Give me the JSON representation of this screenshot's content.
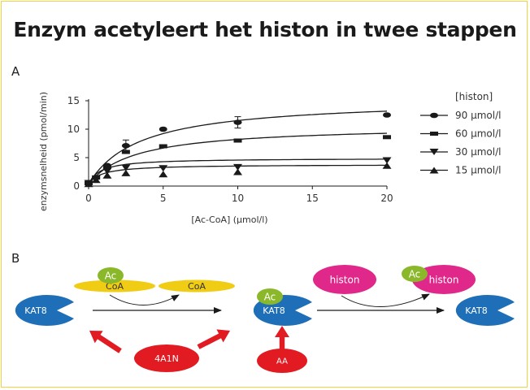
{
  "title": "Enzym acetyleert het histon in twee stappen",
  "panel_a_label": "A",
  "panel_b_label": "B",
  "colors": {
    "frame": "#f2d33a",
    "enzyme": "#1f6fb8",
    "acetyl": "#8bb82a",
    "coa": "#f0cc14",
    "histone": "#e0278a",
    "inhibitor": "#e21b23",
    "curve": "#1a1a1a"
  },
  "chart_data": {
    "type": "scatter",
    "ylabel": "enzymsnelheid (pmol/min)",
    "xlabel": "[Ac-CoA] (μmol/l)",
    "xlim": [
      0,
      20
    ],
    "ylim": [
      0,
      15
    ],
    "xticks": [
      0,
      5,
      10,
      15,
      20
    ],
    "yticks": [
      0,
      5,
      10,
      15
    ],
    "legend_title": "[histon]",
    "legend_position": "right",
    "grid": false,
    "series": [
      {
        "name": "90 μmol/l",
        "marker": "circle",
        "vmax": 15.0,
        "km": 3.5,
        "points": [
          {
            "x": 0,
            "y": 0.5
          },
          {
            "x": 0.5,
            "y": 1.5
          },
          {
            "x": 1.25,
            "y": 3.6
          },
          {
            "x": 2.5,
            "y": 7.1
          },
          {
            "x": 5,
            "y": 10.0
          },
          {
            "x": 10,
            "y": 11.2
          },
          {
            "x": 20,
            "y": 12.5
          }
        ]
      },
      {
        "name": "60 μmol/l",
        "marker": "square",
        "vmax": 10.3,
        "km": 3.2,
        "points": [
          {
            "x": 0,
            "y": 0.5
          },
          {
            "x": 0.5,
            "y": 1.5
          },
          {
            "x": 1.25,
            "y": 3.4
          },
          {
            "x": 2.5,
            "y": 6.0
          },
          {
            "x": 5,
            "y": 7.0
          },
          {
            "x": 10,
            "y": 8.0
          },
          {
            "x": 20,
            "y": 8.6
          }
        ]
      },
      {
        "name": "30 μmol/l",
        "marker": "triangle-down",
        "vmax": 4.5,
        "km": 0.8,
        "points": [
          {
            "x": 0,
            "y": 0.5
          },
          {
            "x": 0.5,
            "y": 1.3
          },
          {
            "x": 1.25,
            "y": 2.6
          },
          {
            "x": 2.5,
            "y": 3.2
          },
          {
            "x": 5,
            "y": 3.1
          },
          {
            "x": 10,
            "y": 3.3
          },
          {
            "x": 20,
            "y": 4.5
          }
        ]
      },
      {
        "name": "15 μmol/l",
        "marker": "triangle-up",
        "vmax": 3.4,
        "km": 0.9,
        "points": [
          {
            "x": 0,
            "y": 0.4
          },
          {
            "x": 0.5,
            "y": 1.1
          },
          {
            "x": 1.25,
            "y": 1.9
          },
          {
            "x": 2.5,
            "y": 2.3
          },
          {
            "x": 5,
            "y": 2.1
          },
          {
            "x": 10,
            "y": 2.5
          },
          {
            "x": 20,
            "y": 3.6
          }
        ]
      }
    ]
  },
  "diagram": {
    "enzyme_label": "KAT8",
    "acetyl_label": "Ac",
    "coa_label": "CoA",
    "histone_label": "histon",
    "inhibitor_1_label": "4A1N",
    "inhibitor_2_label": "AA"
  }
}
